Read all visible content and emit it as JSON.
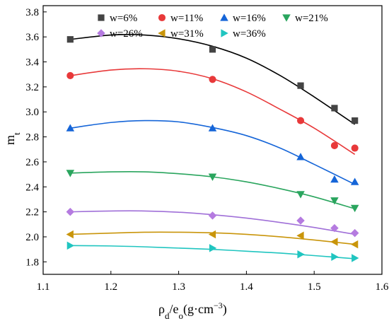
{
  "chart_data": {
    "type": "scatter",
    "xlabel": {
      "main": "ρ",
      "sub1": "d",
      "mid": "/e",
      "sub2": "o",
      "unit_open": "(g·cm",
      "unit_sup": "−3",
      "unit_close": ")"
    },
    "ylabel": {
      "main": "m",
      "sub": "t"
    },
    "xlim": [
      1.1,
      1.6
    ],
    "ylim": [
      1.7,
      3.85
    ],
    "xticks": [
      "1.1",
      "1.2",
      "1.3",
      "1.4",
      "1.5",
      "1.6"
    ],
    "yticks": [
      "1.8",
      "2.0",
      "2.2",
      "2.4",
      "2.6",
      "2.8",
      "3.0",
      "3.2",
      "3.4",
      "3.6",
      "3.8"
    ],
    "grid": false,
    "legend_position": "top",
    "x": [
      1.14,
      1.35,
      1.48,
      1.53,
      1.56
    ],
    "series": [
      {
        "name": "w=6%",
        "marker": "square",
        "color": "#444444",
        "line_color": "#000000",
        "values": [
          3.58,
          3.5,
          3.21,
          3.03,
          2.93
        ],
        "fit": [
          [
            1.14,
            3.58
          ],
          [
            1.2,
            3.615
          ],
          [
            1.25,
            3.615
          ],
          [
            1.3,
            3.585
          ],
          [
            1.35,
            3.525
          ],
          [
            1.4,
            3.43
          ],
          [
            1.45,
            3.29
          ],
          [
            1.5,
            3.12
          ],
          [
            1.56,
            2.9
          ]
        ]
      },
      {
        "name": "w=11%",
        "marker": "circle",
        "color": "#e8393a",
        "line_color": "#e8393a",
        "values": [
          3.29,
          3.26,
          2.93,
          2.73,
          2.71
        ],
        "fit": [
          [
            1.14,
            3.29
          ],
          [
            1.2,
            3.335
          ],
          [
            1.25,
            3.345
          ],
          [
            1.3,
            3.325
          ],
          [
            1.35,
            3.265
          ],
          [
            1.4,
            3.16
          ],
          [
            1.45,
            3.02
          ],
          [
            1.5,
            2.87
          ],
          [
            1.56,
            2.66
          ]
        ]
      },
      {
        "name": "w=16%",
        "marker": "triangle-up",
        "color": "#1565d8",
        "line_color": "#1565d8",
        "values": [
          2.87,
          2.87,
          2.64,
          2.46,
          2.44
        ],
        "fit": [
          [
            1.14,
            2.87
          ],
          [
            1.2,
            2.915
          ],
          [
            1.25,
            2.93
          ],
          [
            1.3,
            2.92
          ],
          [
            1.35,
            2.875
          ],
          [
            1.4,
            2.81
          ],
          [
            1.45,
            2.71
          ],
          [
            1.5,
            2.58
          ],
          [
            1.56,
            2.42
          ]
        ]
      },
      {
        "name": "w=21%",
        "marker": "triangle-down",
        "color": "#2aa55e",
        "line_color": "#2aa55e",
        "values": [
          2.51,
          2.48,
          2.34,
          2.29,
          2.23
        ],
        "fit": [
          [
            1.14,
            2.51
          ],
          [
            1.2,
            2.52
          ],
          [
            1.25,
            2.52
          ],
          [
            1.3,
            2.505
          ],
          [
            1.35,
            2.48
          ],
          [
            1.4,
            2.44
          ],
          [
            1.45,
            2.385
          ],
          [
            1.5,
            2.32
          ],
          [
            1.56,
            2.225
          ]
        ]
      },
      {
        "name": "w=26%",
        "marker": "diamond",
        "color": "#b57be0",
        "line_color": "#a070d8",
        "values": [
          2.2,
          2.17,
          2.13,
          2.07,
          2.03
        ],
        "fit": [
          [
            1.14,
            2.2
          ],
          [
            1.2,
            2.207
          ],
          [
            1.25,
            2.207
          ],
          [
            1.3,
            2.197
          ],
          [
            1.35,
            2.177
          ],
          [
            1.4,
            2.15
          ],
          [
            1.45,
            2.115
          ],
          [
            1.5,
            2.075
          ],
          [
            1.56,
            2.02
          ]
        ]
      },
      {
        "name": "w=31%",
        "marker": "triangle-left",
        "color": "#c9950a",
        "line_color": "#c9950a",
        "values": [
          2.02,
          2.02,
          2.01,
          1.96,
          1.94
        ],
        "fit": [
          [
            1.14,
            2.02
          ],
          [
            1.2,
            2.03
          ],
          [
            1.25,
            2.037
          ],
          [
            1.3,
            2.037
          ],
          [
            1.35,
            2.032
          ],
          [
            1.4,
            2.02
          ],
          [
            1.45,
            2.0
          ],
          [
            1.5,
            1.975
          ],
          [
            1.56,
            1.94
          ]
        ]
      },
      {
        "name": "w=36%",
        "marker": "triangle-right",
        "color": "#20c5c0",
        "line_color": "#20c5c0",
        "values": [
          1.93,
          1.91,
          1.86,
          1.84,
          1.83
        ],
        "fit": [
          [
            1.14,
            1.93
          ],
          [
            1.2,
            1.927
          ],
          [
            1.25,
            1.92
          ],
          [
            1.3,
            1.91
          ],
          [
            1.35,
            1.9
          ],
          [
            1.4,
            1.885
          ],
          [
            1.45,
            1.87
          ],
          [
            1.5,
            1.85
          ],
          [
            1.56,
            1.825
          ]
        ]
      }
    ]
  }
}
